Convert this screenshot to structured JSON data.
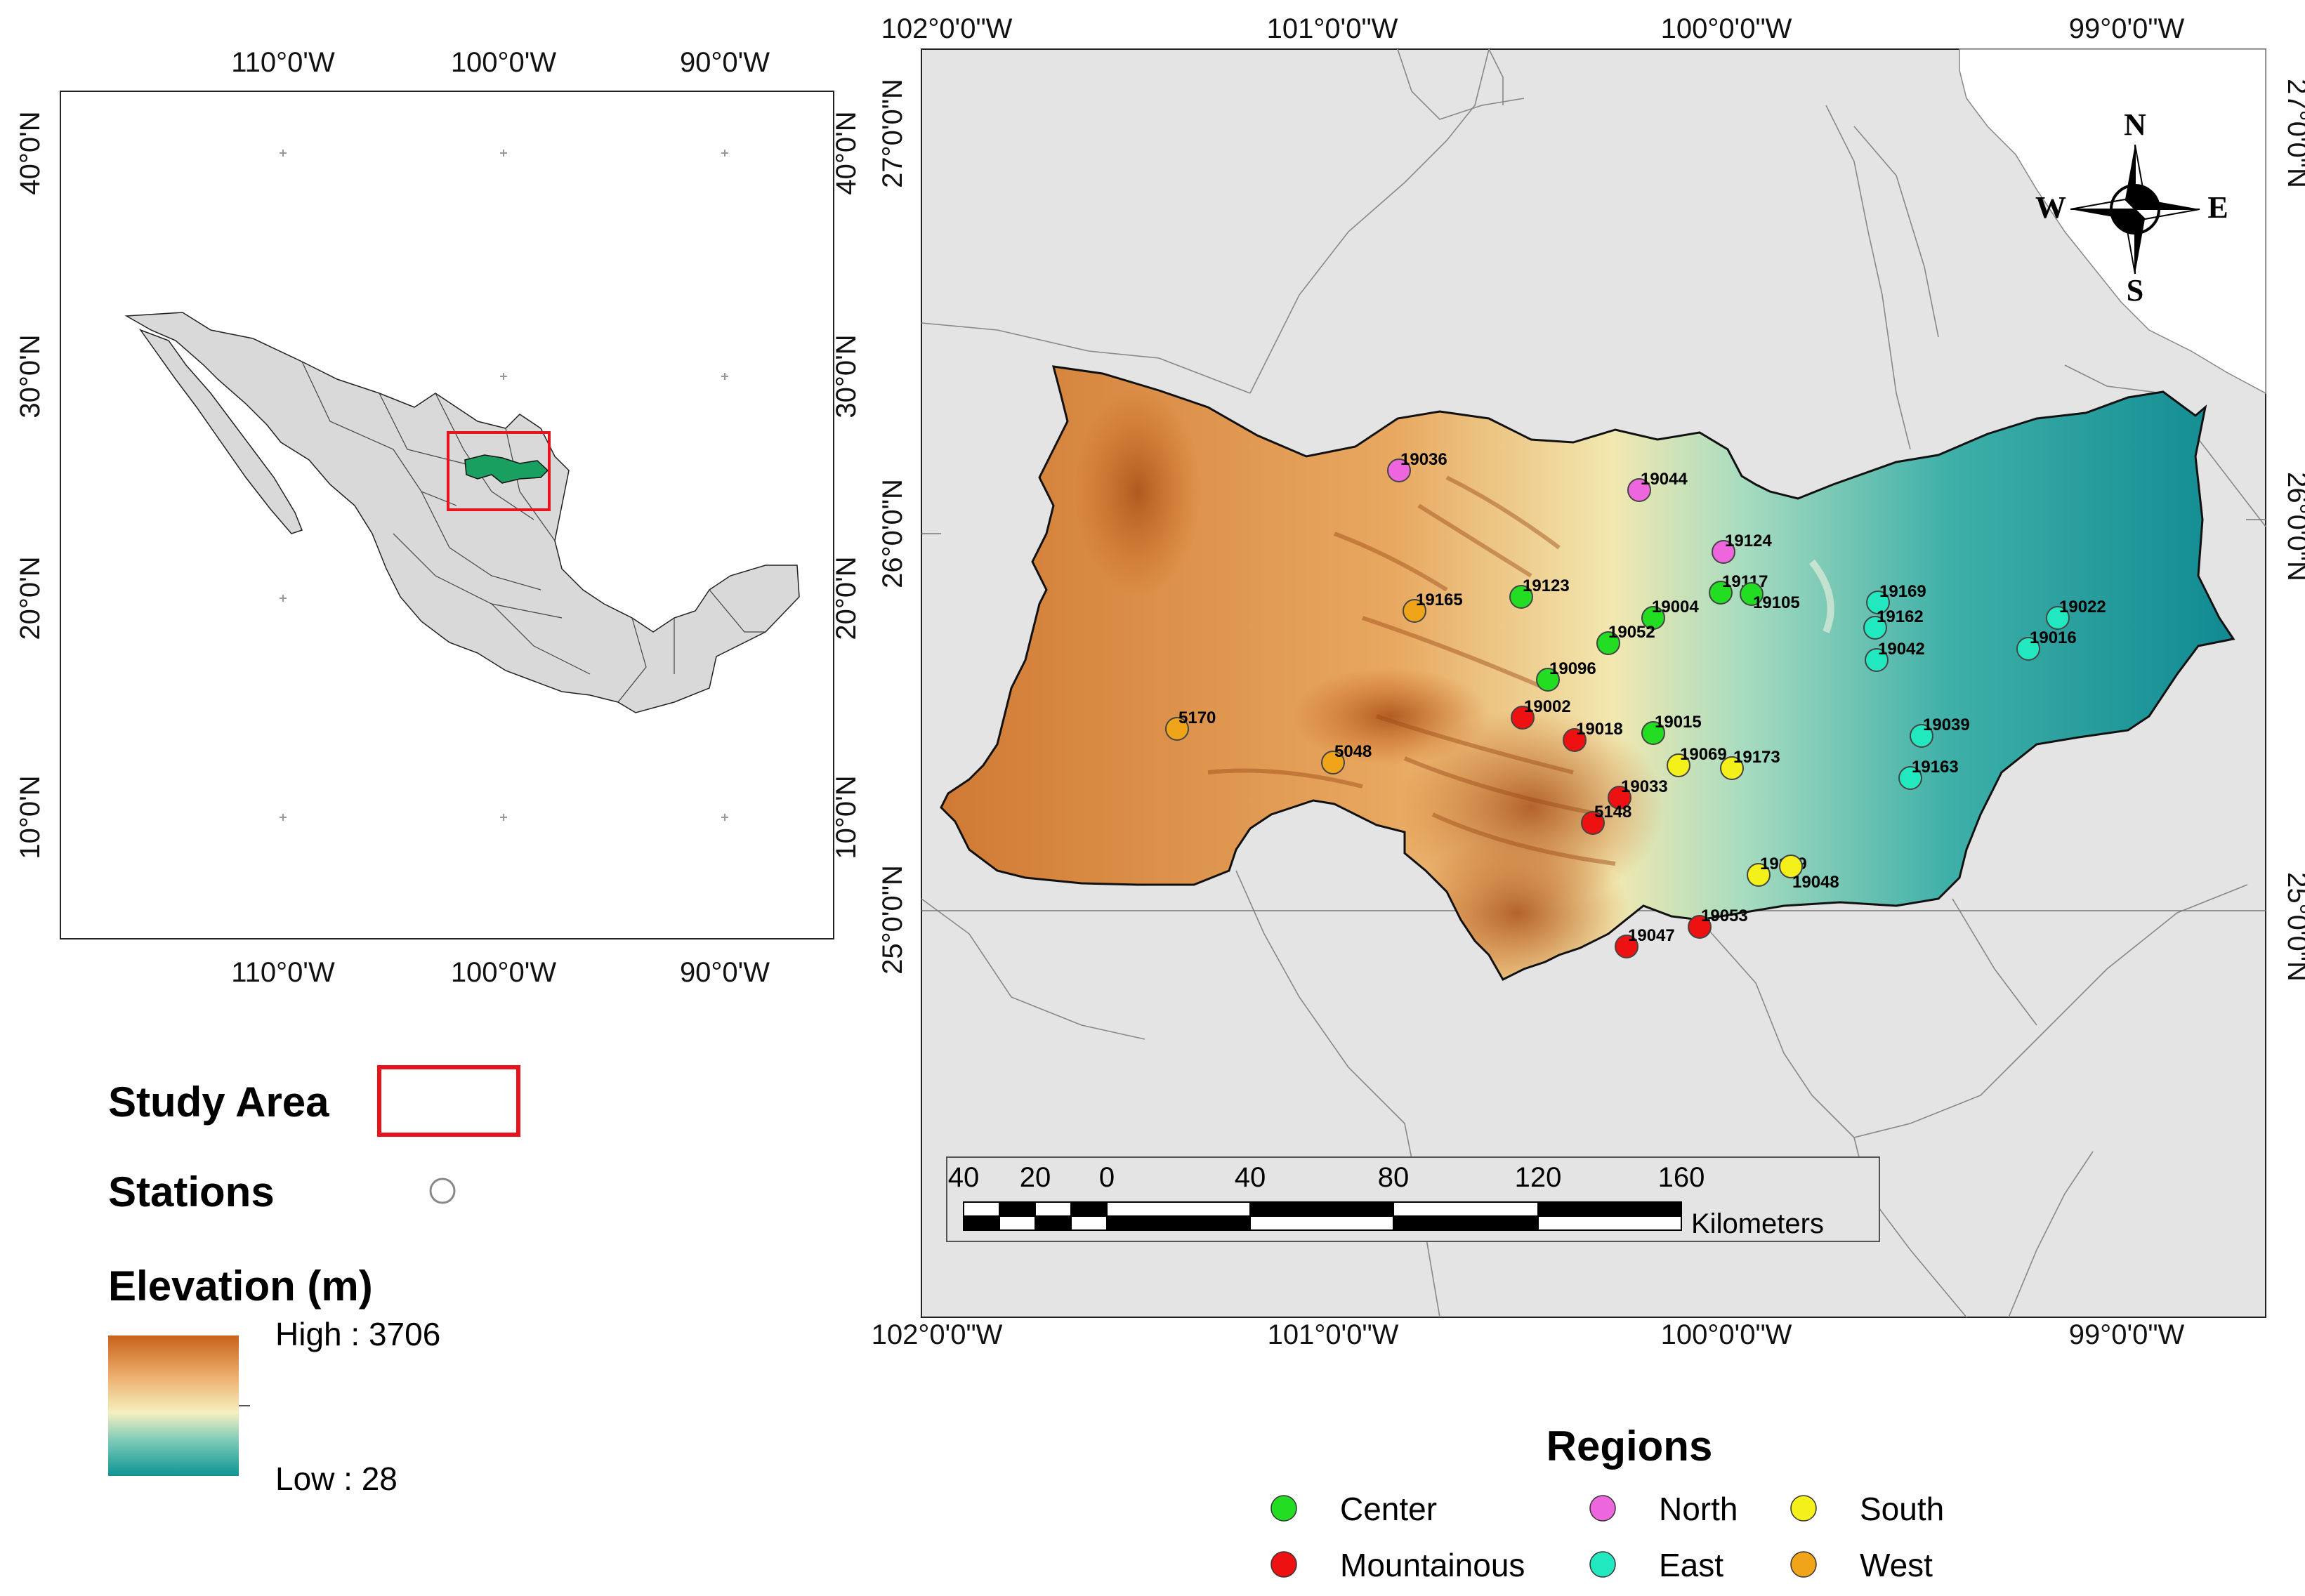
{
  "inset_map": {
    "top_ticks": [
      "110°0'W",
      "100°0'W",
      "90°0'W"
    ],
    "bottom_ticks": [
      "110°0'W",
      "100°0'W",
      "90°0'W"
    ],
    "left_ticks": [
      "40°0'N",
      "30°0'N",
      "20°0'N",
      "10°0'N"
    ],
    "right_ticks": [
      "40°0'N",
      "30°0'N",
      "20°0'N",
      "10°0'N"
    ]
  },
  "main_map": {
    "top_ticks": [
      "102°0'0\"W",
      "101°0'0\"W",
      "100°0'0\"W",
      "99°0'0\"W"
    ],
    "bottom_ticks": [
      "102°0'0\"W",
      "101°0'0\"W",
      "100°0'0\"W",
      "99°0'0\"W"
    ],
    "left_ticks": [
      "27°0'0\"N",
      "26°0'0\"N",
      "25°0'0\"N"
    ],
    "right_ticks": [
      "27°0'0\"N",
      "26°0'0\"N",
      "25°0'0\"N"
    ]
  },
  "compass": {
    "n": "N",
    "s": "S",
    "e": "E",
    "w": "W"
  },
  "scale_bar": {
    "labels": [
      "40",
      "20",
      "0",
      "40",
      "80",
      "120",
      "160"
    ],
    "unit": "Kilometers"
  },
  "legend": {
    "study_area": "Study Area",
    "stations": "Stations",
    "elevation_title": "Elevation (m)",
    "high": "High : 3706",
    "low": "Low : 28",
    "colors": {
      "study_area_box": "#e8141c",
      "high": "#c8621a",
      "mid": "#f4f0c0",
      "low": "#0e9494"
    }
  },
  "regions": {
    "title": "Regions",
    "items": [
      {
        "name": "Center",
        "color": "#22dd22"
      },
      {
        "name": "North",
        "color": "#ee66dd"
      },
      {
        "name": "South",
        "color": "#f4f01a"
      },
      {
        "name": "Mountainous",
        "color": "#ee1111"
      },
      {
        "name": "East",
        "color": "#22e8c0"
      },
      {
        "name": "West",
        "color": "#f0a41a"
      }
    ]
  },
  "stations": [
    {
      "id": "19036",
      "region": "North"
    },
    {
      "id": "19044",
      "region": "North"
    },
    {
      "id": "19124",
      "region": "North"
    },
    {
      "id": "19123",
      "region": "Center"
    },
    {
      "id": "19117",
      "region": "Center"
    },
    {
      "id": "19105",
      "region": "Center"
    },
    {
      "id": "19004",
      "region": "Center"
    },
    {
      "id": "19052",
      "region": "Center"
    },
    {
      "id": "19096",
      "region": "Center"
    },
    {
      "id": "19015",
      "region": "Center"
    },
    {
      "id": "19002",
      "region": "Mountainous"
    },
    {
      "id": "19018",
      "region": "Mountainous"
    },
    {
      "id": "19033",
      "region": "Mountainous"
    },
    {
      "id": "5148",
      "region": "Mountainous"
    },
    {
      "id": "19047",
      "region": "Mountainous"
    },
    {
      "id": "19053",
      "region": "Mountainous"
    },
    {
      "id": "19069",
      "region": "South"
    },
    {
      "id": "19173",
      "region": "South"
    },
    {
      "id": "19189",
      "region": "South"
    },
    {
      "id": "19048",
      "region": "South"
    },
    {
      "id": "19169",
      "region": "East"
    },
    {
      "id": "19162",
      "region": "East"
    },
    {
      "id": "19042",
      "region": "East"
    },
    {
      "id": "19022",
      "region": "East"
    },
    {
      "id": "19016",
      "region": "East"
    },
    {
      "id": "19039",
      "region": "East"
    },
    {
      "id": "19163",
      "region": "East"
    },
    {
      "id": "19165",
      "region": "West"
    },
    {
      "id": "5170",
      "region": "West"
    },
    {
      "id": "5048",
      "region": "West"
    }
  ]
}
